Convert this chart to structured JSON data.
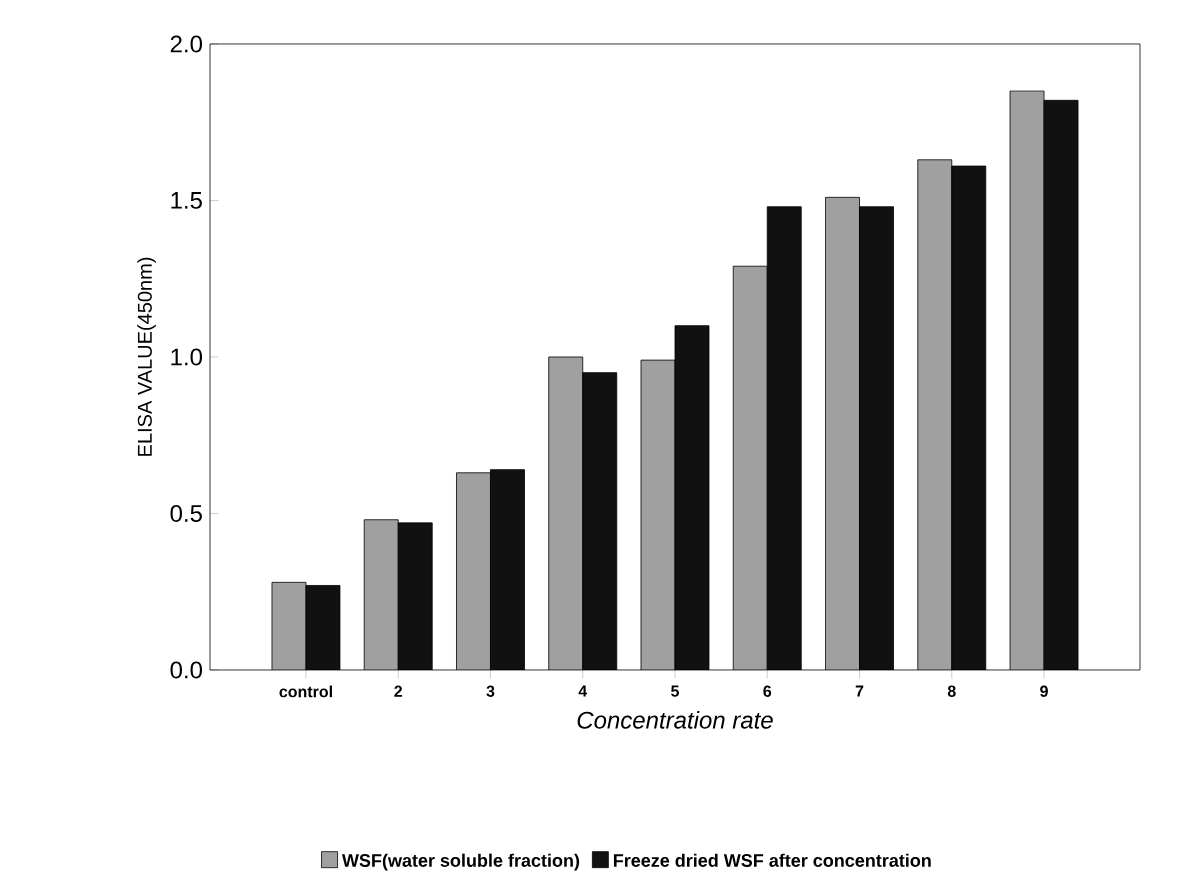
{
  "chart_data": {
    "type": "bar",
    "xlabel": "Concentration rate",
    "ylabel": "ELISA VALUE(450nm)",
    "categories": [
      "control",
      "2",
      "3",
      "4",
      "5",
      "6",
      "7",
      "8",
      "9"
    ],
    "series": [
      {
        "name": "WSF(water soluble fraction)",
        "color": "#a0a0a0",
        "values": [
          0.28,
          0.48,
          0.63,
          1.0,
          0.99,
          1.29,
          1.51,
          1.63,
          1.85
        ]
      },
      {
        "name": "Freeze dried WSF after concentration",
        "color": "#111111",
        "values": [
          0.27,
          0.47,
          0.64,
          0.95,
          1.1,
          1.48,
          1.48,
          1.61,
          1.82
        ]
      }
    ],
    "ylim": [
      0,
      2
    ],
    "yticks": [
      {
        "value": 0,
        "label": "0.0"
      },
      {
        "value": 0.5,
        "label": "0.5"
      },
      {
        "value": 1,
        "label": "1.0"
      },
      {
        "value": 1.5,
        "label": "1.5"
      },
      {
        "value": 2,
        "label": "2.0"
      }
    ],
    "legend": "bottom"
  }
}
